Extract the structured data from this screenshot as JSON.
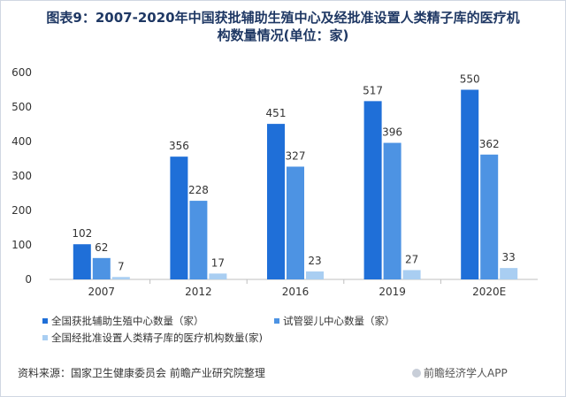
{
  "title": "图表9：2007-2020年中国获批辅助生殖中心及经批准设置人类精子库的医疗机构数量情况(单位：家)",
  "source": "资料来源：国家卫生健康委员会 前瞻产业研究院整理",
  "brand": "前瞻经济学人APP",
  "colors": {
    "series1": "#1f6fd8",
    "series2": "#4d93e3",
    "series3": "#a9cef2",
    "axis": "#bfbfbf",
    "title": "#1f3864"
  },
  "chart_data": {
    "type": "bar",
    "categories": [
      "2007",
      "2012",
      "2016",
      "2019",
      "2020E"
    ],
    "series": [
      {
        "name": "全国获批辅助生殖中心数量（家）",
        "values": [
          102,
          356,
          451,
          517,
          550
        ]
      },
      {
        "name": "试管婴儿中心数量（家）",
        "values": [
          62,
          228,
          327,
          396,
          362
        ]
      },
      {
        "name": "全国经批准设置人类精子库的医疗机构数量(家)",
        "values": [
          7,
          17,
          23,
          27,
          33
        ]
      }
    ],
    "yticks": [
      0,
      100,
      200,
      300,
      400,
      500,
      600
    ],
    "ylim": [
      0,
      600
    ],
    "xlabel": "",
    "ylabel": "",
    "grid": false,
    "legend_position": "bottom"
  }
}
